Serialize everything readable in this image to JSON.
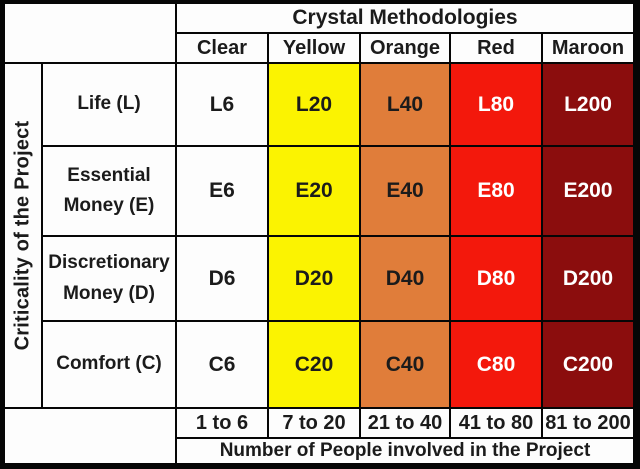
{
  "chart_data": {
    "type": "table",
    "title": "Crystal Methodologies",
    "row_axis_label": "Criticality of the Project",
    "col_axis_label": "Number of People involved in the Project",
    "col_headers": [
      "Clear",
      "Yellow",
      "Orange",
      "Red",
      "Maroon"
    ],
    "col_ranges": [
      "1 to 6",
      "7 to 20",
      "21 to 40",
      "41 to 80",
      "81 to 200"
    ],
    "row_headers": [
      "Life (L)",
      "Essential Money (E)",
      "Discretionary Money (D)",
      "Comfort (C)"
    ],
    "cells": [
      [
        "L6",
        "L20",
        "L40",
        "L80",
        "L200"
      ],
      [
        "E6",
        "E20",
        "E40",
        "E80",
        "E200"
      ],
      [
        "D6",
        "D20",
        "D40",
        "D80",
        "D200"
      ],
      [
        "C6",
        "C20",
        "C40",
        "C80",
        "C200"
      ]
    ],
    "column_colors": {
      "bg": [
        "#FDFDFD",
        "#FBF301",
        "#E07D3A",
        "#F3180C",
        "#8B0D0D"
      ],
      "text": [
        "#1B1B1B",
        "#1B1B1B",
        "#1B1B1B",
        "#FFFFFF",
        "#FFFFFF"
      ]
    },
    "frame_color": "#060606"
  }
}
